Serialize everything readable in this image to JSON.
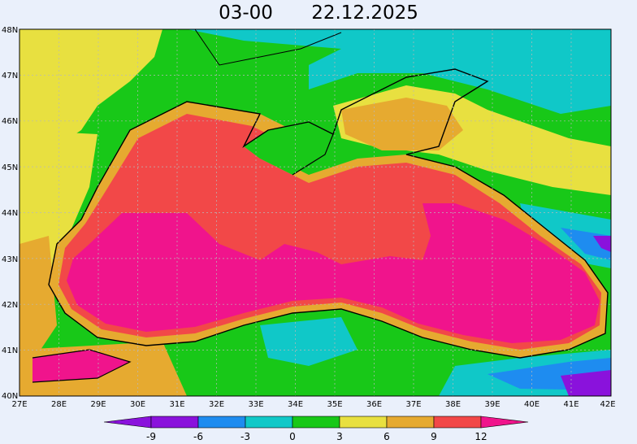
{
  "title": {
    "hour": "03-00",
    "date": "22.12.2025"
  },
  "axes": {
    "x_ticks": [
      "27E",
      "28E",
      "29E",
      "30E",
      "31E",
      "32E",
      "33E",
      "34E",
      "35E",
      "36E",
      "37E",
      "38E",
      "39E",
      "40E",
      "41E",
      "42E"
    ],
    "y_ticks": [
      "48N",
      "47N",
      "46N",
      "45N",
      "44N",
      "43N",
      "42N",
      "41N",
      "40N"
    ]
  },
  "colorbar": {
    "labels": [
      "-9",
      "-6",
      "-3",
      "0",
      "3",
      "6",
      "9",
      "12"
    ],
    "colors": [
      "#8a12dc",
      "#1e8cf0",
      "#10c8c8",
      "#18c818",
      "#e8e040",
      "#e6aa30",
      "#f24848",
      "#f0148c"
    ]
  },
  "palette": {
    "background": "#eaf0fb",
    "ocean_warm": "#f0148c",
    "ocean": "#f24848",
    "shelf": "#e6aa30",
    "land_cool": "#e8e040",
    "land_cold": "#18c818",
    "land_colder": "#10c8c8",
    "land_coldest": "#1e8cf0",
    "land_freezing": "#8a12dc",
    "coastline": "#000000"
  }
}
